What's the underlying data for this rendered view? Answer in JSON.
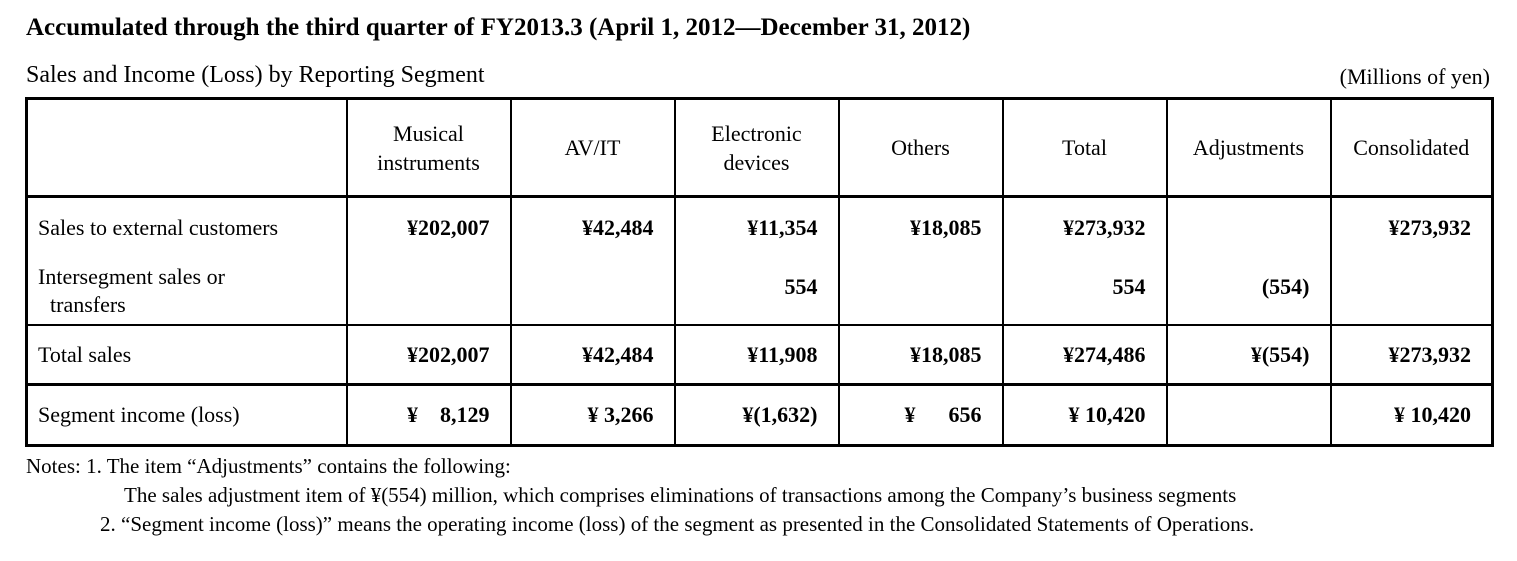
{
  "heading": "Accumulated through the third quarter of FY2013.3 (April 1, 2012—December 31, 2012)",
  "subtitle": "Sales and Income (Loss) by Reporting Segment",
  "units": "(Millions of yen)",
  "table": {
    "columns": [
      "",
      "Musical instruments",
      "AV/IT",
      "Electronic devices",
      "Others",
      "Total",
      "Adjustments",
      "Consolidated"
    ],
    "rows": [
      {
        "label": "Sales to external customers",
        "values": [
          "¥202,007",
          "¥42,484",
          "¥11,354",
          "¥18,085",
          "¥273,932",
          "",
          "¥273,932"
        ]
      },
      {
        "label_line1": "Intersegment sales or",
        "label_line2": "transfers",
        "values": [
          "",
          "",
          "554",
          "",
          "554",
          "(554)",
          ""
        ]
      },
      {
        "label": "Total sales",
        "values": [
          "¥202,007",
          "¥42,484",
          "¥11,908",
          "¥18,085",
          "¥274,486",
          "¥(554)",
          "¥273,932"
        ]
      },
      {
        "label": "Segment income (loss)",
        "values": [
          "¥    8,129",
          "¥ 3,266",
          "¥(1,632)",
          "¥      656",
          "¥ 10,420",
          "",
          "¥ 10,420"
        ]
      }
    ]
  },
  "notes": {
    "note1": "Notes: 1. The item “Adjustments” contains the following:",
    "note1_detail": "The sales adjustment item of ¥(554) million, which comprises eliminations of transactions among the Company’s business segments",
    "note2": "2. “Segment income (loss)” means the operating income (loss) of the segment as presented in the Consolidated Statements of Operations."
  }
}
